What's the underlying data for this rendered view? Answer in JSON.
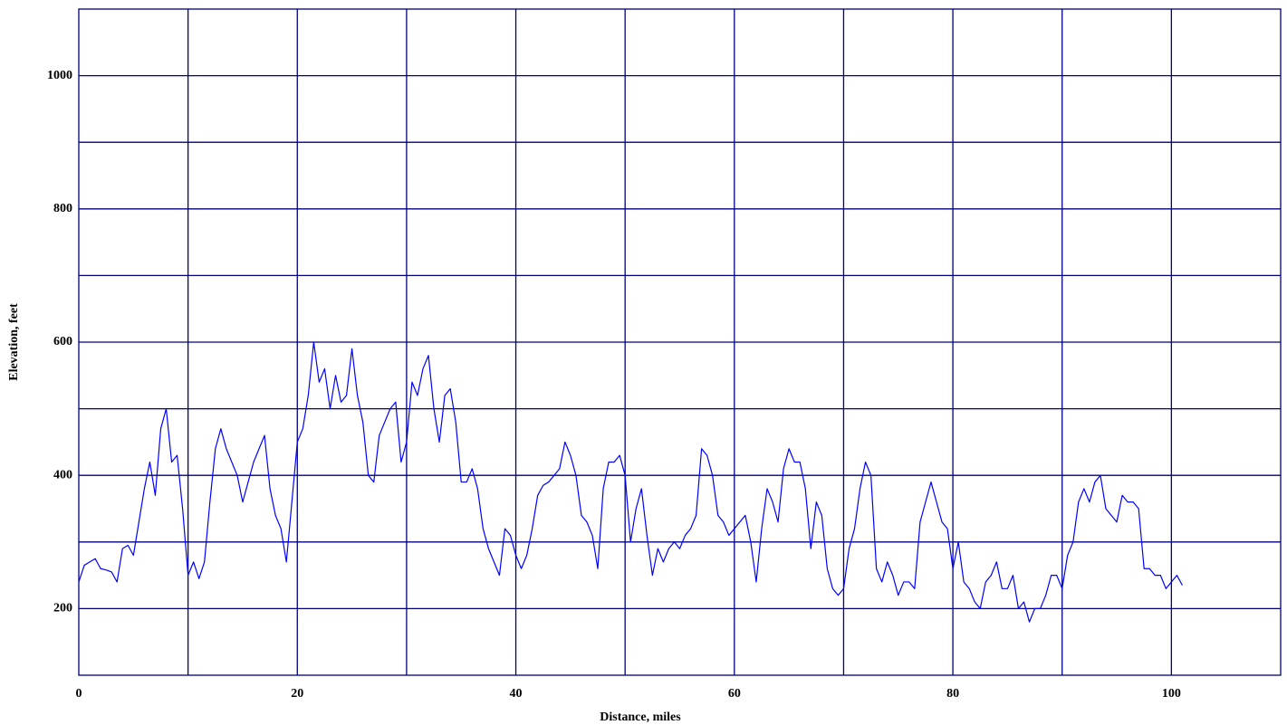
{
  "chart_data": {
    "type": "line",
    "xlabel": "Distance, miles",
    "ylabel": "Elevation, feet",
    "color": "#0000ff",
    "grid_color": "#000080",
    "xlim": [
      0,
      110
    ],
    "ylim": [
      100,
      1100
    ],
    "xticks": [
      0,
      20,
      40,
      60,
      80,
      100
    ],
    "yticks": [
      200,
      400,
      600,
      800,
      1000
    ],
    "xgrid": [
      10,
      20,
      30,
      40,
      50,
      60,
      70,
      80,
      90,
      100
    ],
    "ygrid": [
      200,
      300,
      400,
      500,
      600,
      700,
      800,
      900,
      1000
    ],
    "x": [
      0,
      0.5,
      1,
      1.5,
      2,
      2.5,
      3,
      3.5,
      4,
      4.5,
      5,
      5.5,
      6,
      6.5,
      7,
      7.5,
      8,
      8.5,
      9,
      9.5,
      10,
      10.5,
      11,
      11.5,
      12,
      12.5,
      13,
      13.5,
      14,
      14.5,
      15,
      15.5,
      16,
      16.5,
      17,
      17.5,
      18,
      18.5,
      19,
      19.5,
      20,
      20.5,
      21,
      21.5,
      22,
      22.5,
      23,
      23.5,
      24,
      24.5,
      25,
      25.5,
      26,
      26.5,
      27,
      27.5,
      28,
      28.5,
      29,
      29.5,
      30,
      30.5,
      31,
      31.5,
      32,
      32.5,
      33,
      33.5,
      34,
      34.5,
      35,
      35.5,
      36,
      36.5,
      37,
      37.5,
      38,
      38.5,
      39,
      39.5,
      40,
      40.5,
      41,
      41.5,
      42,
      42.5,
      43,
      43.5,
      44,
      44.5,
      45,
      45.5,
      46,
      46.5,
      47,
      47.5,
      48,
      48.5,
      49,
      49.5,
      50,
      50.5,
      51,
      51.5,
      52,
      52.5,
      53,
      53.5,
      54,
      54.5,
      55,
      55.5,
      56,
      56.5,
      57,
      57.5,
      58,
      58.5,
      59,
      59.5,
      60,
      60.5,
      61,
      61.5,
      62,
      62.5,
      63,
      63.5,
      64,
      64.5,
      65,
      65.5,
      66,
      66.5,
      67,
      67.5,
      68,
      68.5,
      69,
      69.5,
      70,
      70.5,
      71,
      71.5,
      72,
      72.5,
      73,
      73.5,
      74,
      74.5,
      75,
      75.5,
      76,
      76.5,
      77,
      77.5,
      78,
      78.5,
      79,
      79.5,
      80,
      80.5,
      81,
      81.5,
      82,
      82.5,
      83,
      83.5,
      84,
      84.5,
      85,
      85.5,
      86,
      86.5,
      87,
      87.5,
      88,
      88.5,
      89,
      89.5,
      90,
      90.5,
      91,
      91.5,
      92,
      92.5,
      93,
      93.5,
      94,
      94.5,
      95,
      95.5,
      96,
      96.5,
      97,
      97.5,
      98,
      98.5,
      99,
      99.5,
      100,
      100.5,
      101
    ],
    "values": [
      240,
      265,
      270,
      275,
      260,
      258,
      255,
      240,
      290,
      295,
      280,
      330,
      380,
      420,
      370,
      470,
      500,
      420,
      430,
      350,
      250,
      270,
      245,
      270,
      360,
      440,
      470,
      440,
      420,
      400,
      360,
      390,
      420,
      440,
      460,
      380,
      340,
      320,
      270,
      360,
      450,
      470,
      520,
      600,
      540,
      560,
      500,
      550,
      510,
      520,
      590,
      520,
      480,
      400,
      390,
      460,
      480,
      500,
      510,
      420,
      450,
      540,
      520,
      560,
      580,
      500,
      450,
      520,
      530,
      480,
      390,
      390,
      410,
      380,
      320,
      290,
      270,
      250,
      320,
      310,
      280,
      260,
      280,
      320,
      370,
      385,
      390,
      400,
      410,
      450,
      430,
      400,
      340,
      330,
      310,
      260,
      380,
      420,
      420,
      430,
      400,
      300,
      350,
      380,
      310,
      250,
      290,
      270,
      290,
      300,
      290,
      310,
      320,
      340,
      440,
      430,
      400,
      340,
      330,
      310,
      320,
      330,
      340,
      300,
      240,
      320,
      380,
      360,
      330,
      410,
      440,
      420,
      420,
      380,
      290,
      360,
      340,
      260,
      230,
      220,
      230,
      290,
      320,
      380,
      420,
      400,
      260,
      240,
      270,
      250,
      220,
      240,
      240,
      230,
      330,
      360,
      390,
      360,
      330,
      320,
      260,
      300,
      240,
      230,
      210,
      200,
      240,
      250,
      270,
      230,
      230,
      250,
      200,
      210,
      180,
      200,
      200,
      220,
      250,
      250,
      230,
      280,
      300,
      360,
      380,
      360,
      390,
      400,
      350,
      340,
      330,
      370,
      360,
      360,
      350,
      260,
      260,
      250,
      250,
      230,
      240,
      250,
      235
    ]
  }
}
